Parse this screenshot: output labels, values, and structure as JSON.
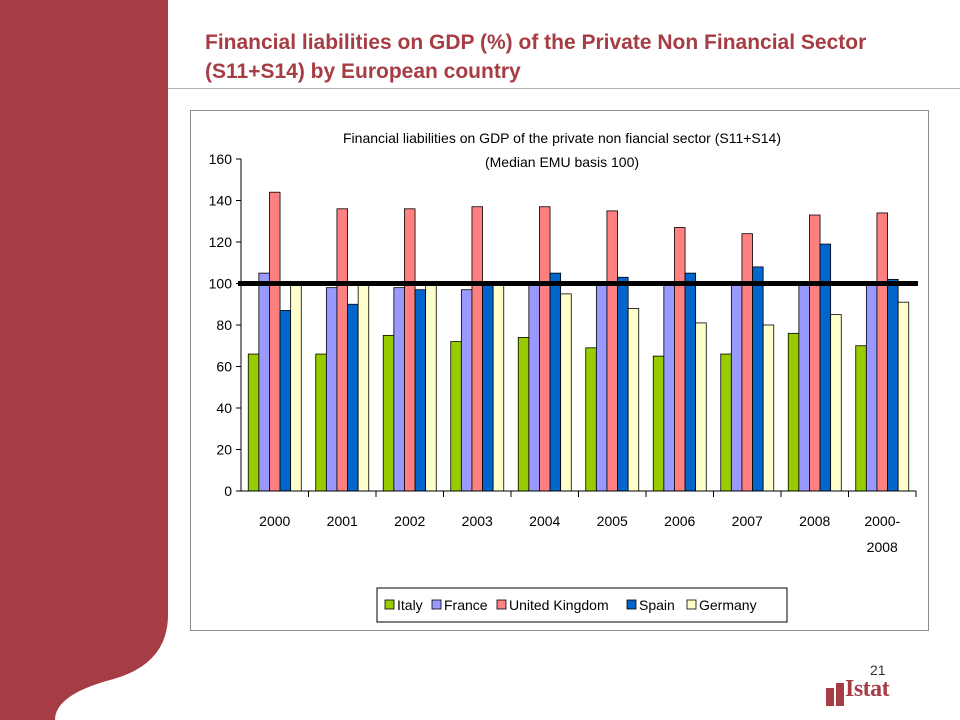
{
  "slide": {
    "title": "Financial liabilities on GDP (%) of the Private Non Financial Sector (S11+S14) by European country",
    "page_number": "21",
    "logo_text": "Istat"
  },
  "colors": {
    "brand": "#a63d44",
    "italy": "#99cc00",
    "france": "#9999ff",
    "united_kingdom": "#ff8080",
    "spain": "#0066cc",
    "germany": "#ffffcc",
    "reference_line": "#000000"
  },
  "chart_data": {
    "type": "bar",
    "title": "Financial liabilities on GDP of the private non fiancial sector (S11+S14)",
    "subtitle": "(Median EMU basis 100)",
    "categories": [
      "2000",
      "2001",
      "2002",
      "2003",
      "2004",
      "2005",
      "2006",
      "2007",
      "2008",
      "2000-\n2008"
    ],
    "series": [
      {
        "name": "Italy",
        "color": "#99cc00",
        "values": [
          66,
          66,
          75,
          72,
          74,
          69,
          65,
          66,
          76,
          70
        ]
      },
      {
        "name": "France",
        "color": "#9999ff",
        "values": [
          105,
          98,
          98,
          97,
          101,
          100,
          100,
          100,
          100,
          100
        ]
      },
      {
        "name": "United Kingdom",
        "color": "#ff8080",
        "values": [
          144,
          136,
          136,
          137,
          137,
          135,
          127,
          124,
          133,
          134
        ]
      },
      {
        "name": "Spain",
        "color": "#0066cc",
        "values": [
          87,
          90,
          97,
          100,
          105,
          103,
          105,
          108,
          119,
          102
        ]
      },
      {
        "name": "Germany",
        "color": "#ffffcc",
        "values": [
          100,
          100,
          100,
          100,
          95,
          88,
          81,
          80,
          85,
          91
        ]
      }
    ],
    "reference_line": 100,
    "ylim": [
      0,
      160
    ],
    "yticks": [
      0,
      20,
      40,
      60,
      80,
      100,
      120,
      140,
      160
    ],
    "xlabel": "",
    "ylabel": "",
    "legend_position": "bottom"
  }
}
